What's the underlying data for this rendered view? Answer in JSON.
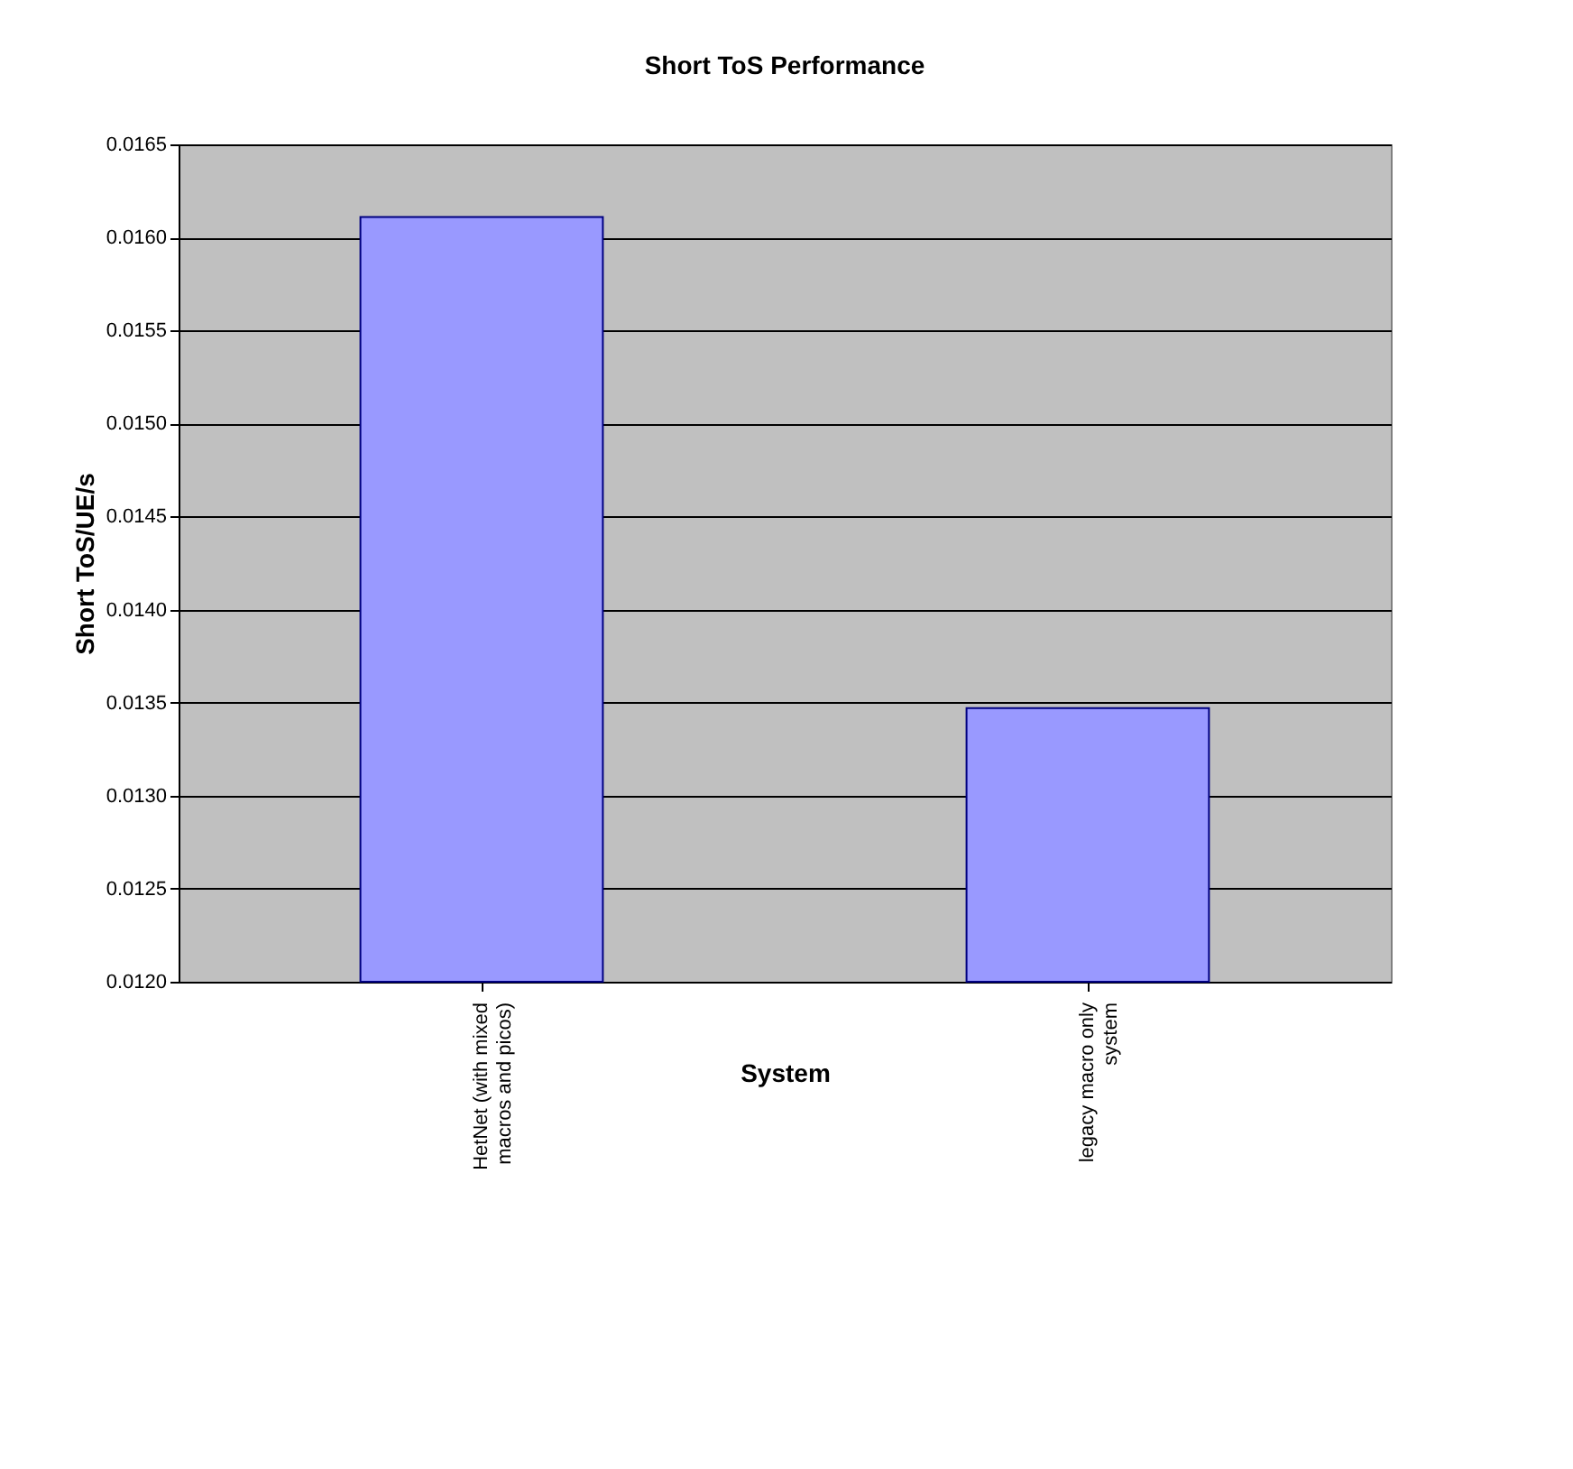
{
  "chart_data": {
    "type": "bar",
    "title": "Short ToS Performance",
    "xlabel": "System",
    "ylabel": "Short ToS/UE/s",
    "categories": [
      "HetNet (with mixed\nmacros and picos)",
      "legacy macro only\nsystem"
    ],
    "values": [
      0.01611,
      0.01347
    ],
    "color": "#9999ff",
    "ylim": [
      0.012,
      0.0165
    ],
    "yticks": [
      {
        "value": 0.012,
        "label": "0.0120"
      },
      {
        "value": 0.0125,
        "label": "0.0125"
      },
      {
        "value": 0.013,
        "label": "0.0130"
      },
      {
        "value": 0.0135,
        "label": "0.0135"
      },
      {
        "value": 0.014,
        "label": "0.0140"
      },
      {
        "value": 0.0145,
        "label": "0.0145"
      },
      {
        "value": 0.015,
        "label": "0.0150"
      },
      {
        "value": 0.0155,
        "label": "0.0155"
      },
      {
        "value": 0.016,
        "label": "0.0160"
      },
      {
        "value": 0.0165,
        "label": "0.0165"
      }
    ],
    "grid": "y"
  }
}
